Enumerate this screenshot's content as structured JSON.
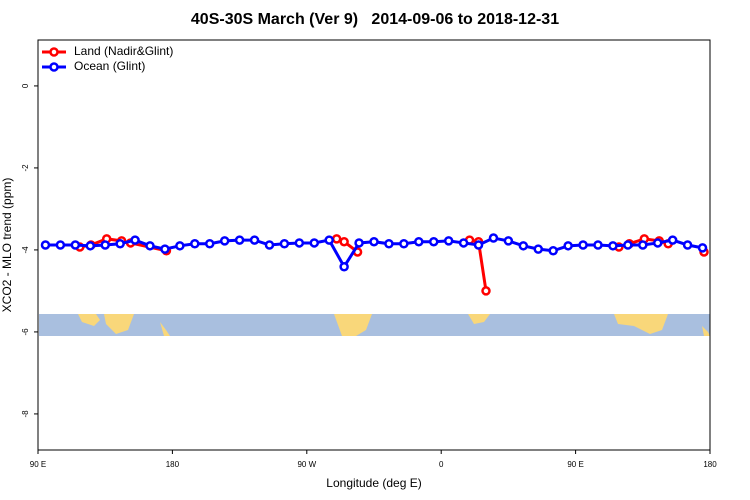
{
  "chart_data": {
    "type": "line",
    "title": "40S-30S March (Ver 9)   2014-09-06 to 2018-12-31",
    "x_label": "Longitude (deg E)",
    "y_label": "XCO2 - MLO trend (ppm)",
    "xlim": [
      90,
      540
    ],
    "ylim": [
      -8.88,
      1.12
    ],
    "xticks": [
      {
        "value": 90,
        "label": "90 E"
      },
      {
        "value": 180,
        "label": "180"
      },
      {
        "value": 270,
        "label": "90 W"
      },
      {
        "value": 360,
        "label": "0"
      },
      {
        "value": 450,
        "label": "90 E"
      },
      {
        "value": 540,
        "label": "180"
      }
    ],
    "yticks": [
      0,
      -2,
      -4,
      -6,
      -8
    ],
    "legend": "top-left",
    "series": [
      {
        "name": "Land (Nadir&Glint)",
        "color": "#ff0000",
        "x": [
          118,
          125.5,
          136,
          146,
          152,
          176,
          null,
          290,
          295,
          304,
          null,
          379,
          385,
          390,
          null,
          479,
          486,
          496,
          506,
          512,
          null,
          536
        ],
        "values": [
          -3.93,
          -3.88,
          -3.73,
          -3.78,
          -3.83,
          -4.02,
          null,
          -3.73,
          -3.8,
          -4.05,
          null,
          -3.76,
          -3.8,
          -5.0,
          null,
          -3.93,
          -3.85,
          -3.73,
          -3.78,
          -3.85,
          null,
          -4.05
        ]
      },
      {
        "name": "Ocean (Glint)",
        "color": "#0000ff",
        "x": [
          95,
          105,
          115,
          125,
          135,
          145,
          155,
          165,
          175,
          185,
          195,
          205,
          215,
          225,
          235,
          245,
          255,
          265,
          275,
          285,
          295,
          305,
          315,
          325,
          335,
          345,
          355,
          365,
          375,
          385,
          395,
          405,
          415,
          425,
          435,
          445,
          455,
          465,
          475,
          485,
          495,
          505,
          515,
          525,
          535
        ],
        "values": [
          -3.88,
          -3.88,
          -3.88,
          -3.9,
          -3.88,
          -3.85,
          -3.76,
          -3.9,
          -3.98,
          -3.9,
          -3.85,
          -3.85,
          -3.78,
          -3.76,
          -3.76,
          -3.88,
          -3.85,
          -3.83,
          -3.83,
          -3.76,
          -4.41,
          -3.83,
          -3.8,
          -3.85,
          -3.85,
          -3.8,
          -3.8,
          -3.78,
          -3.83,
          -3.88,
          -3.71,
          -3.78,
          -3.9,
          -3.98,
          -4.02,
          -3.9,
          -3.88,
          -3.88,
          -3.9,
          -3.88,
          -3.88,
          -3.83,
          -3.76,
          -3.88,
          -3.95
        ]
      }
    ]
  }
}
